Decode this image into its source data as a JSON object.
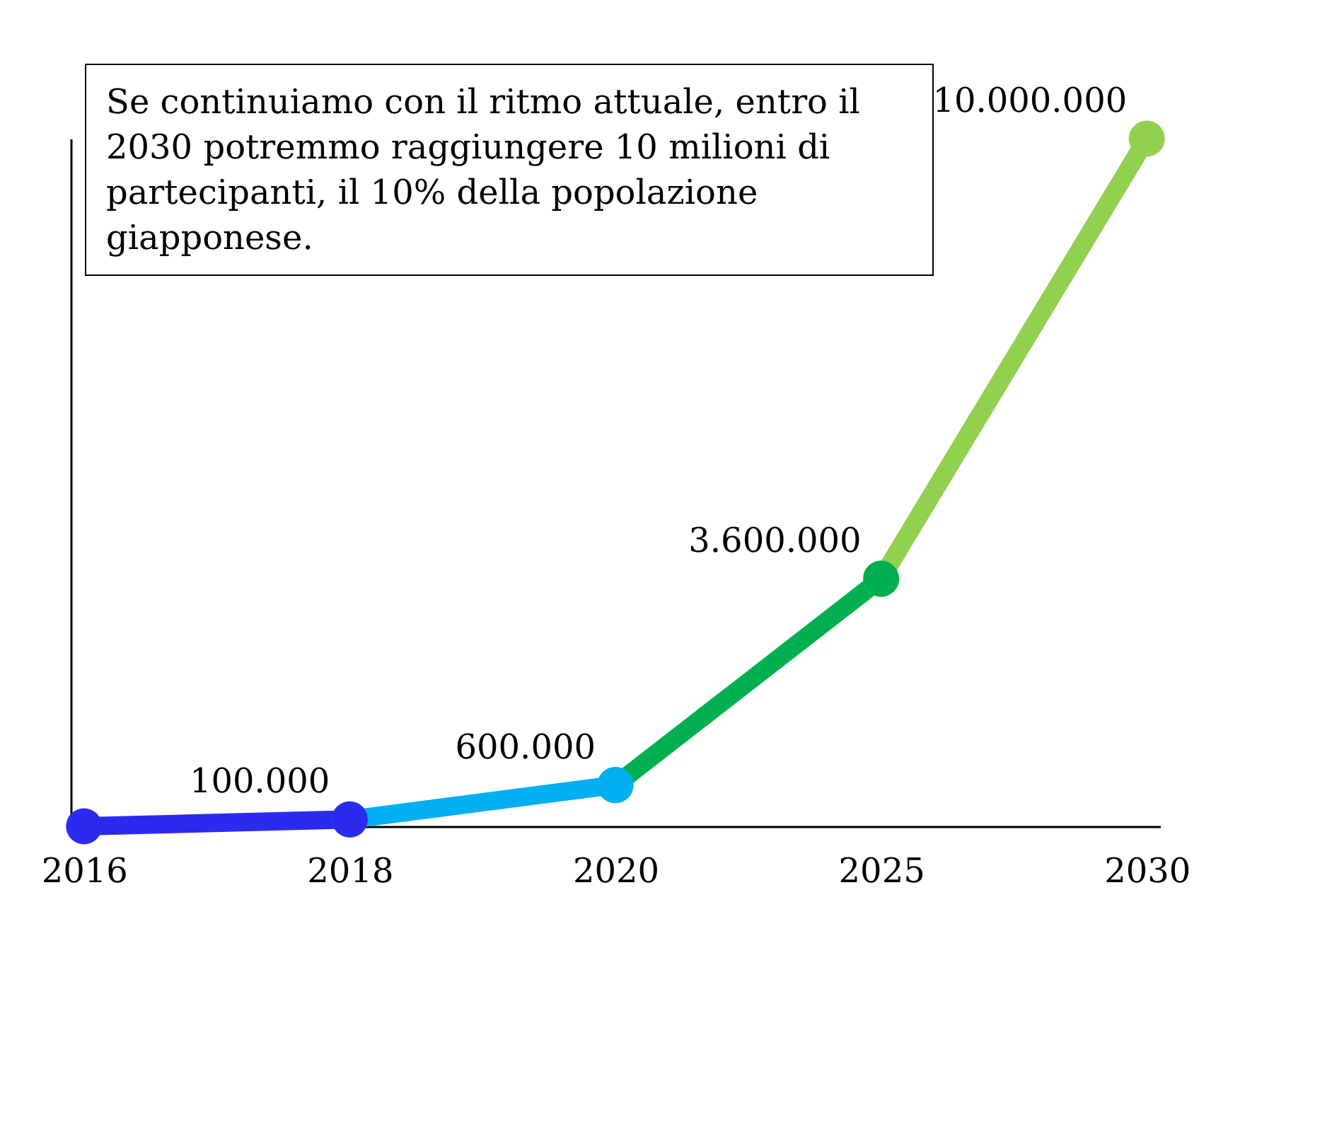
{
  "chart_data": {
    "type": "line",
    "categories": [
      "2016",
      "2018",
      "2020",
      "2025",
      "2030"
    ],
    "series": [
      {
        "color": "#2b2bf0",
        "values": [
          0,
          100000,
          null,
          null,
          null
        ],
        "value_labels": [
          null,
          "100.000",
          null,
          null,
          null
        ]
      },
      {
        "color": "#00b0f0",
        "values": [
          null,
          100000,
          600000,
          null,
          null
        ],
        "value_labels": [
          null,
          null,
          "600.000",
          null,
          null
        ]
      },
      {
        "color": "#00b050",
        "values": [
          null,
          null,
          600000,
          3600000,
          null
        ],
        "value_labels": [
          null,
          null,
          null,
          "3.600.000",
          null
        ]
      },
      {
        "color": "#92d050",
        "values": [
          null,
          null,
          null,
          3600000,
          10000000
        ],
        "value_labels": [
          null,
          null,
          null,
          null,
          "10.000.000"
        ]
      }
    ],
    "marker": "circle",
    "tick_labels": "x",
    "annotations": [
      "Se continuiamo con il ritmo attuale, entro il 2030 potremmo raggiungere 10 milioni di partecipanti, il 10% della popolazione giapponese."
    ]
  }
}
